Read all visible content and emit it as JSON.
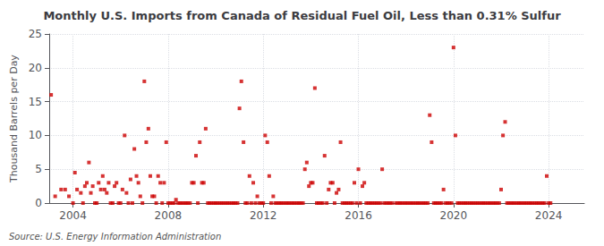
{
  "chart_data": {
    "type": "scatter",
    "title": "Monthly U.S. Imports from Canada of Residual Fuel Oil, Less than 0.31% Sulfur",
    "ylabel": "Thousand Barrels per Day",
    "annotation": "Source: U.S. Energy Information Administration",
    "color": "#cc0000",
    "marker": "square",
    "grid": true,
    "xlim": [
      2003.0,
      2025.5
    ],
    "xticks": [
      2004,
      2008,
      2012,
      2016,
      2020,
      2024
    ],
    "ylim": [
      0,
      25
    ],
    "yticks": [
      0,
      5,
      10,
      15,
      20,
      25
    ],
    "x": [
      2003.08,
      2003.25,
      2003.5,
      2003.67,
      2003.83,
      2004.0,
      2004.08,
      2004.17,
      2004.33,
      2004.42,
      2004.5,
      2004.58,
      2004.67,
      2004.75,
      2004.83,
      2004.92,
      2005.0,
      2005.08,
      2005.17,
      2005.25,
      2005.33,
      2005.42,
      2005.5,
      2005.58,
      2005.67,
      2005.75,
      2005.83,
      2005.92,
      2006.0,
      2006.08,
      2006.17,
      2006.25,
      2006.33,
      2006.42,
      2006.5,
      2006.58,
      2006.67,
      2006.75,
      2006.83,
      2006.92,
      2007.0,
      2007.08,
      2007.17,
      2007.25,
      2007.33,
      2007.42,
      2007.5,
      2007.58,
      2007.67,
      2007.75,
      2007.83,
      2007.92,
      2008.0,
      2008.08,
      2008.17,
      2008.25,
      2008.33,
      2008.42,
      2008.5,
      2008.58,
      2008.67,
      2008.75,
      2008.83,
      2008.92,
      2009.0,
      2009.08,
      2009.17,
      2009.25,
      2009.33,
      2009.42,
      2009.5,
      2009.58,
      2009.67,
      2009.75,
      2009.83,
      2009.92,
      2010.0,
      2010.08,
      2010.17,
      2010.25,
      2010.33,
      2010.42,
      2010.5,
      2010.58,
      2010.67,
      2010.75,
      2010.83,
      2010.92,
      2011.0,
      2011.08,
      2011.17,
      2011.25,
      2011.33,
      2011.42,
      2011.5,
      2011.58,
      2011.67,
      2011.75,
      2011.83,
      2011.92,
      2012.0,
      2012.08,
      2012.17,
      2012.25,
      2012.33,
      2012.42,
      2012.5,
      2012.58,
      2012.67,
      2012.75,
      2012.83,
      2012.92,
      2013.0,
      2013.08,
      2013.17,
      2013.25,
      2013.33,
      2013.42,
      2013.5,
      2013.58,
      2013.67,
      2013.75,
      2013.83,
      2013.92,
      2014.0,
      2014.08,
      2014.17,
      2014.25,
      2014.33,
      2014.42,
      2014.5,
      2014.58,
      2014.67,
      2014.75,
      2014.83,
      2014.92,
      2015.0,
      2015.08,
      2015.17,
      2015.25,
      2015.33,
      2015.42,
      2015.5,
      2015.58,
      2015.67,
      2015.75,
      2015.83,
      2015.92,
      2016.0,
      2016.08,
      2016.17,
      2016.25,
      2016.33,
      2016.42,
      2016.5,
      2016.58,
      2016.67,
      2016.75,
      2016.83,
      2016.92,
      2017.0,
      2017.08,
      2017.17,
      2017.25,
      2017.33,
      2017.42,
      2017.58,
      2017.67,
      2017.75,
      2017.83,
      2017.92,
      2018.0,
      2018.08,
      2018.17,
      2018.25,
      2018.33,
      2018.42,
      2018.5,
      2018.58,
      2018.67,
      2018.75,
      2018.83,
      2018.92,
      2019.0,
      2019.08,
      2019.17,
      2019.25,
      2019.33,
      2019.42,
      2019.5,
      2019.58,
      2019.67,
      2019.75,
      2019.83,
      2019.92,
      2020.0,
      2020.08,
      2020.17,
      2020.25,
      2020.33,
      2020.42,
      2020.5,
      2020.58,
      2020.67,
      2020.75,
      2020.83,
      2020.92,
      2021.0,
      2021.08,
      2021.17,
      2021.25,
      2021.33,
      2021.42,
      2021.5,
      2021.58,
      2021.67,
      2021.75,
      2021.83,
      2021.92,
      2022.0,
      2022.08,
      2022.17,
      2022.25,
      2022.33,
      2022.42,
      2022.5,
      2022.58,
      2022.67,
      2022.75,
      2022.83,
      2022.92,
      2023.0,
      2023.08,
      2023.17,
      2023.25,
      2023.33,
      2023.42,
      2023.5,
      2023.58,
      2023.67,
      2023.75,
      2023.83,
      2023.92,
      2024.0,
      2024.08
    ],
    "values": [
      16.0,
      1.0,
      2.0,
      2.0,
      1.0,
      0.0,
      4.5,
      2.0,
      1.5,
      0.0,
      2.5,
      3.0,
      6.0,
      1.5,
      2.5,
      0.0,
      0.0,
      3.0,
      2.0,
      4.0,
      2.0,
      1.5,
      3.0,
      0.0,
      0.0,
      2.5,
      3.0,
      0.0,
      0.0,
      2.0,
      10.0,
      1.5,
      0.0,
      3.5,
      0.0,
      8.0,
      4.0,
      3.0,
      1.0,
      0.0,
      18.0,
      9.0,
      11.0,
      4.0,
      1.0,
      1.0,
      0.0,
      4.0,
      3.0,
      0.0,
      3.0,
      9.0,
      0.0,
      0.0,
      0.0,
      0.0,
      0.5,
      0.0,
      0.0,
      0.0,
      0.0,
      0.0,
      0.0,
      0.0,
      3.0,
      3.0,
      7.0,
      0.0,
      9.0,
      3.0,
      3.0,
      11.0,
      0.0,
      0.0,
      0.0,
      0.0,
      0.0,
      0.0,
      0.0,
      0.0,
      0.0,
      0.0,
      0.0,
      0.0,
      0.0,
      0.0,
      0.0,
      0.0,
      14.0,
      18.0,
      9.0,
      0.0,
      0.0,
      4.0,
      0.0,
      3.0,
      0.0,
      1.0,
      0.0,
      0.0,
      0.0,
      10.0,
      9.0,
      4.0,
      0.0,
      1.0,
      0.0,
      0.0,
      0.0,
      0.0,
      0.0,
      0.0,
      0.0,
      0.0,
      0.0,
      0.0,
      0.0,
      0.0,
      0.0,
      0.0,
      0.0,
      5.0,
      6.0,
      2.5,
      3.0,
      3.0,
      17.0,
      0.0,
      0.0,
      0.0,
      0.0,
      7.0,
      0.0,
      2.0,
      3.0,
      3.0,
      0.0,
      1.5,
      2.0,
      9.0,
      0.0,
      0.0,
      0.0,
      0.0,
      0.0,
      0.0,
      3.0,
      0.0,
      5.0,
      0.0,
      2.5,
      3.0,
      0.0,
      0.0,
      0.0,
      0.0,
      0.0,
      0.0,
      0.0,
      0.0,
      5.0,
      0.0,
      0.0,
      0.0,
      0.0,
      0.0,
      0.0,
      0.0,
      0.0,
      0.0,
      0.0,
      0.0,
      0.0,
      0.0,
      0.0,
      0.0,
      0.0,
      0.0,
      0.0,
      0.0,
      0.0,
      0.0,
      0.0,
      13.0,
      9.0,
      0.0,
      0.0,
      0.0,
      0.0,
      0.0,
      2.0,
      0.0,
      0.0,
      0.0,
      0.0,
      23.0,
      10.0,
      0.0,
      0.0,
      0.0,
      0.0,
      0.0,
      0.0,
      0.0,
      0.0,
      0.0,
      0.0,
      0.0,
      0.0,
      0.0,
      0.0,
      0.0,
      0.0,
      0.0,
      0.0,
      0.0,
      0.0,
      0.0,
      0.0,
      2.0,
      10.0,
      12.0,
      0.0,
      0.0,
      0.0,
      0.0,
      0.0,
      0.0,
      0.0,
      0.0,
      0.0,
      0.0,
      0.0,
      0.0,
      0.0,
      0.0,
      0.0,
      0.0,
      0.0,
      0.0,
      0.0,
      0.0,
      4.0,
      0.0,
      0.0
    ]
  }
}
